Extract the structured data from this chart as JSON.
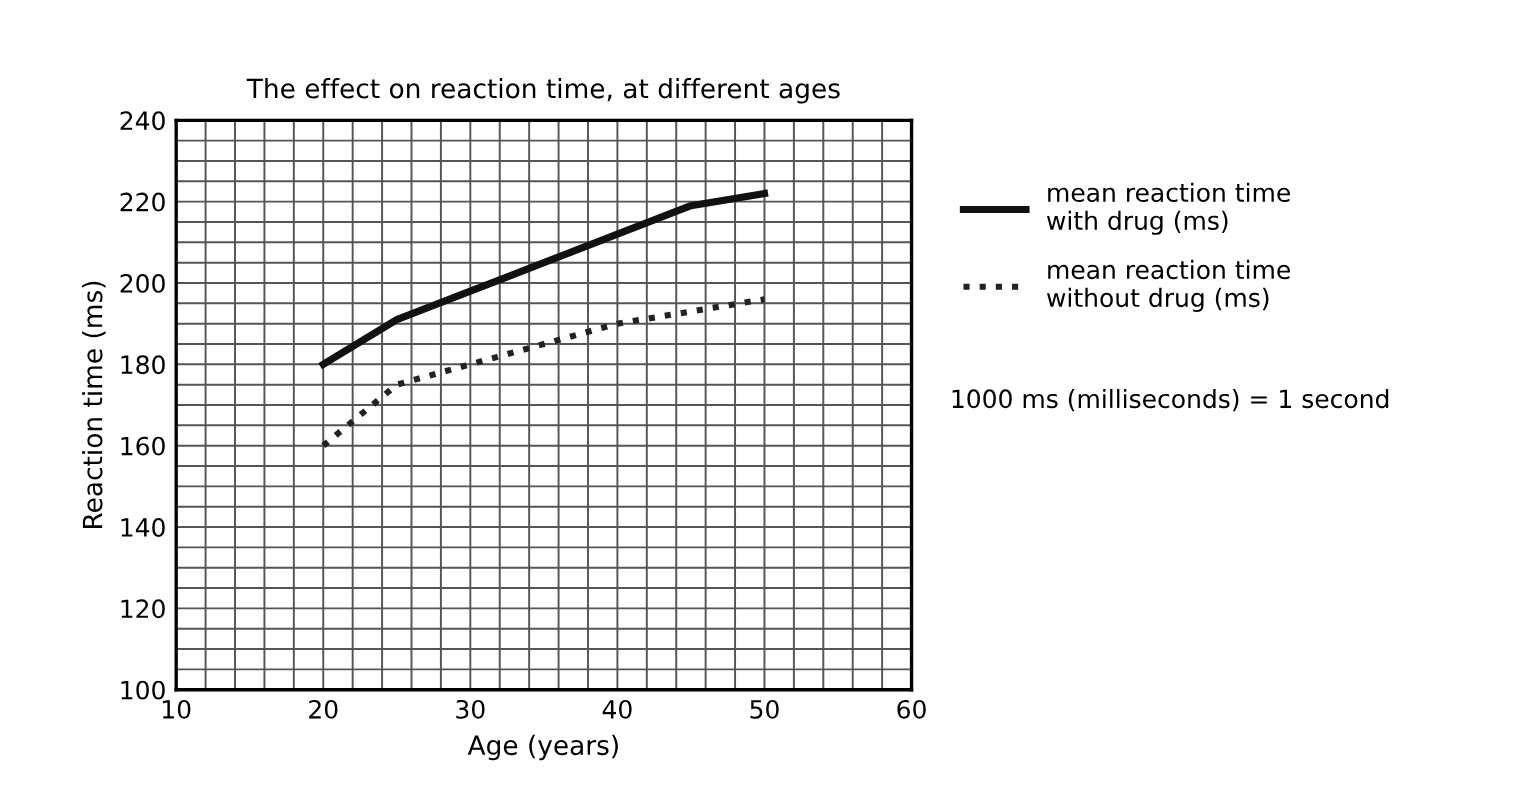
{
  "chart_data": {
    "type": "line",
    "title": "The effect on reaction time, at different ages",
    "xlabel": "Age (years)",
    "ylabel": "Reaction time (ms)",
    "x": [
      20,
      25,
      30,
      35,
      40,
      45,
      50
    ],
    "series": [
      {
        "name": "mean reaction time with drug (ms)",
        "color": "#111111",
        "line_style": "solid",
        "values": [
          180,
          191,
          198,
          205,
          212,
          219,
          222
        ]
      },
      {
        "name": "mean reaction time without drug (ms)",
        "color": "#222222",
        "line_style": "dotted",
        "values": [
          160,
          175,
          180,
          185,
          190,
          193,
          196
        ]
      }
    ],
    "xlim": [
      10,
      60
    ],
    "ylim": [
      100,
      240
    ],
    "xticks": [
      10,
      {
        "value": 12,
        "label": null
      },
      {
        "value": 14,
        "label": null
      },
      {
        "value": 16,
        "label": null
      },
      {
        "value": 18,
        "label": null
      },
      20,
      {
        "value": 22,
        "label": null
      },
      {
        "value": 24,
        "label": null
      },
      {
        "value": 26,
        "label": null
      },
      {
        "value": 28,
        "label": null
      },
      30,
      {
        "value": 32,
        "label": null
      },
      {
        "value": 34,
        "label": null
      },
      {
        "value": 36,
        "label": null
      },
      {
        "value": 38,
        "label": null
      },
      40,
      {
        "value": 42,
        "label": null
      },
      {
        "value": 44,
        "label": null
      },
      {
        "value": 46,
        "label": null
      },
      {
        "value": 48,
        "label": null
      },
      50,
      {
        "value": 52,
        "label": null
      },
      {
        "value": 54,
        "label": null
      },
      {
        "value": 56,
        "label": null
      },
      {
        "value": 58,
        "label": null
      },
      60
    ],
    "yticks": [
      100,
      {
        "value": 105,
        "label": null
      },
      {
        "value": 110,
        "label": null
      },
      {
        "value": 115,
        "label": null
      },
      120,
      {
        "value": 125,
        "label": null
      },
      {
        "value": 130,
        "label": null
      },
      {
        "value": 135,
        "label": null
      },
      140,
      {
        "value": 145,
        "label": null
      },
      {
        "value": 150,
        "label": null
      },
      {
        "value": 155,
        "label": null
      },
      160,
      {
        "value": 165,
        "label": null
      },
      {
        "value": 170,
        "label": null
      },
      {
        "value": 175,
        "label": null
      },
      180,
      {
        "value": 185,
        "label": null
      },
      {
        "value": 190,
        "label": null
      },
      {
        "value": 195,
        "label": null
      },
      200,
      {
        "value": 205,
        "label": null
      },
      {
        "value": 210,
        "label": null
      },
      {
        "value": 215,
        "label": null
      },
      220,
      {
        "value": 225,
        "label": null
      },
      {
        "value": 230,
        "label": null
      },
      {
        "value": 235,
        "label": null
      },
      240
    ],
    "grid": true,
    "legend": "right",
    "marker": "none",
    "annotations": [
      "1000 ms (milliseconds) = 1 second"
    ]
  }
}
